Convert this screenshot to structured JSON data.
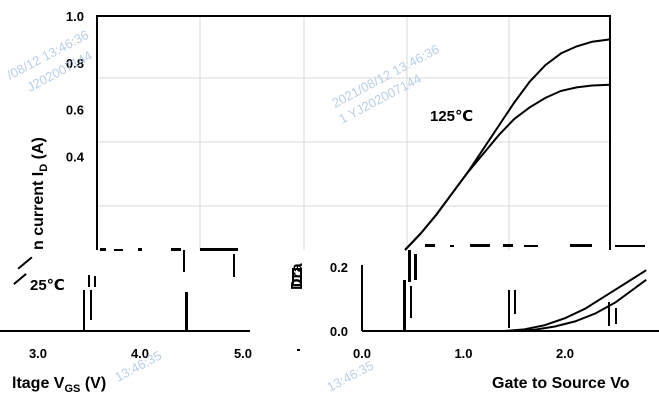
{
  "chart_data": [
    {
      "type": "line",
      "panel": "main-top",
      "ylim": [
        0,
        1.0
      ],
      "y_ticks": [
        "1.0",
        "0.8",
        "0.6",
        "0.4"
      ],
      "ylabel": "n current I",
      "ylabel_sub": "D",
      "ylabel_unit": " (A)",
      "annotations": [
        {
          "text": "125℃"
        }
      ],
      "series": [
        {
          "values_x": [
            0.0,
            0.15,
            0.3,
            0.45,
            0.6,
            0.75,
            0.9,
            1.05,
            1.2,
            1.35,
            1.5,
            1.65,
            1.8,
            1.97
          ],
          "values_y": [
            0.0,
            0.07,
            0.15,
            0.24,
            0.33,
            0.43,
            0.53,
            0.63,
            0.72,
            0.79,
            0.84,
            0.87,
            0.89,
            0.9
          ]
        },
        {
          "values_x": [
            0.0,
            0.15,
            0.3,
            0.45,
            0.6,
            0.75,
            0.9,
            1.05,
            1.2,
            1.35,
            1.5,
            1.65,
            1.8,
            1.97
          ],
          "values_y": [
            0.0,
            0.07,
            0.15,
            0.24,
            0.33,
            0.41,
            0.49,
            0.56,
            0.61,
            0.65,
            0.68,
            0.695,
            0.703,
            0.706
          ]
        }
      ]
    },
    {
      "type": "line",
      "panel": "left-strip",
      "x_ticks": [
        "3.0",
        "4.0",
        "5.0"
      ],
      "xlabel": "ltage V",
      "xlabel_sub": "GS",
      "xlabel_unit": " (V)",
      "annotations": [
        {
          "text": "25℃"
        }
      ]
    },
    {
      "type": "line",
      "panel": "right-strip",
      "y_ticks": [
        "0.2",
        "0.0"
      ],
      "x_ticks": [
        "0.0",
        "1.0",
        "2.0"
      ],
      "xlabel": "Gate to Source Vo",
      "ylabel_fragment": "Dra",
      "series": [
        {
          "values_x": [
            1.5,
            1.7,
            1.9,
            2.1,
            2.3,
            2.5,
            2.8
          ],
          "values_y": [
            0.0,
            0.004,
            0.014,
            0.03,
            0.055,
            0.09,
            0.16
          ]
        },
        {
          "values_x": [
            1.4,
            1.6,
            1.8,
            2.0,
            2.2,
            2.4,
            2.8
          ],
          "values_y": [
            0.0,
            0.005,
            0.018,
            0.04,
            0.07,
            0.11,
            0.19
          ]
        }
      ]
    }
  ],
  "watermarks": [
    {
      "text": "/08/12  13:46:36"
    },
    {
      "text": "J202007144"
    },
    {
      "text": "2021/08/12  13:46:36"
    },
    {
      "text": "1 YJ202007144"
    },
    {
      "text": "13:46:35"
    },
    {
      "text": "13:46:35"
    }
  ]
}
